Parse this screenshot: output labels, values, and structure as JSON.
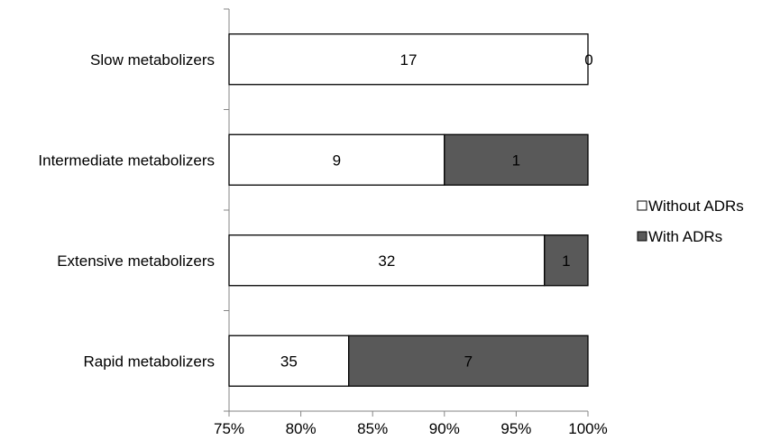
{
  "chart_data": {
    "type": "bar",
    "orientation": "horizontal",
    "stacked": "percent",
    "categories": [
      "Slow metabolizers",
      "Intermediate metabolizers",
      "Extensive metabolizers",
      "Rapid metabolizers"
    ],
    "series": [
      {
        "name": "Without ADRs",
        "values": [
          17,
          9,
          32,
          35
        ],
        "color": "#ffffff"
      },
      {
        "name": "With ADRs",
        "values": [
          0,
          1,
          1,
          7
        ],
        "color": "#595959"
      }
    ],
    "xlim": [
      75,
      100
    ],
    "xticks": [
      "75%",
      "80%",
      "85%",
      "90%",
      "95%",
      "100%"
    ],
    "xlabel": "",
    "ylabel": "",
    "title": "",
    "grid": false,
    "legend": "right"
  }
}
